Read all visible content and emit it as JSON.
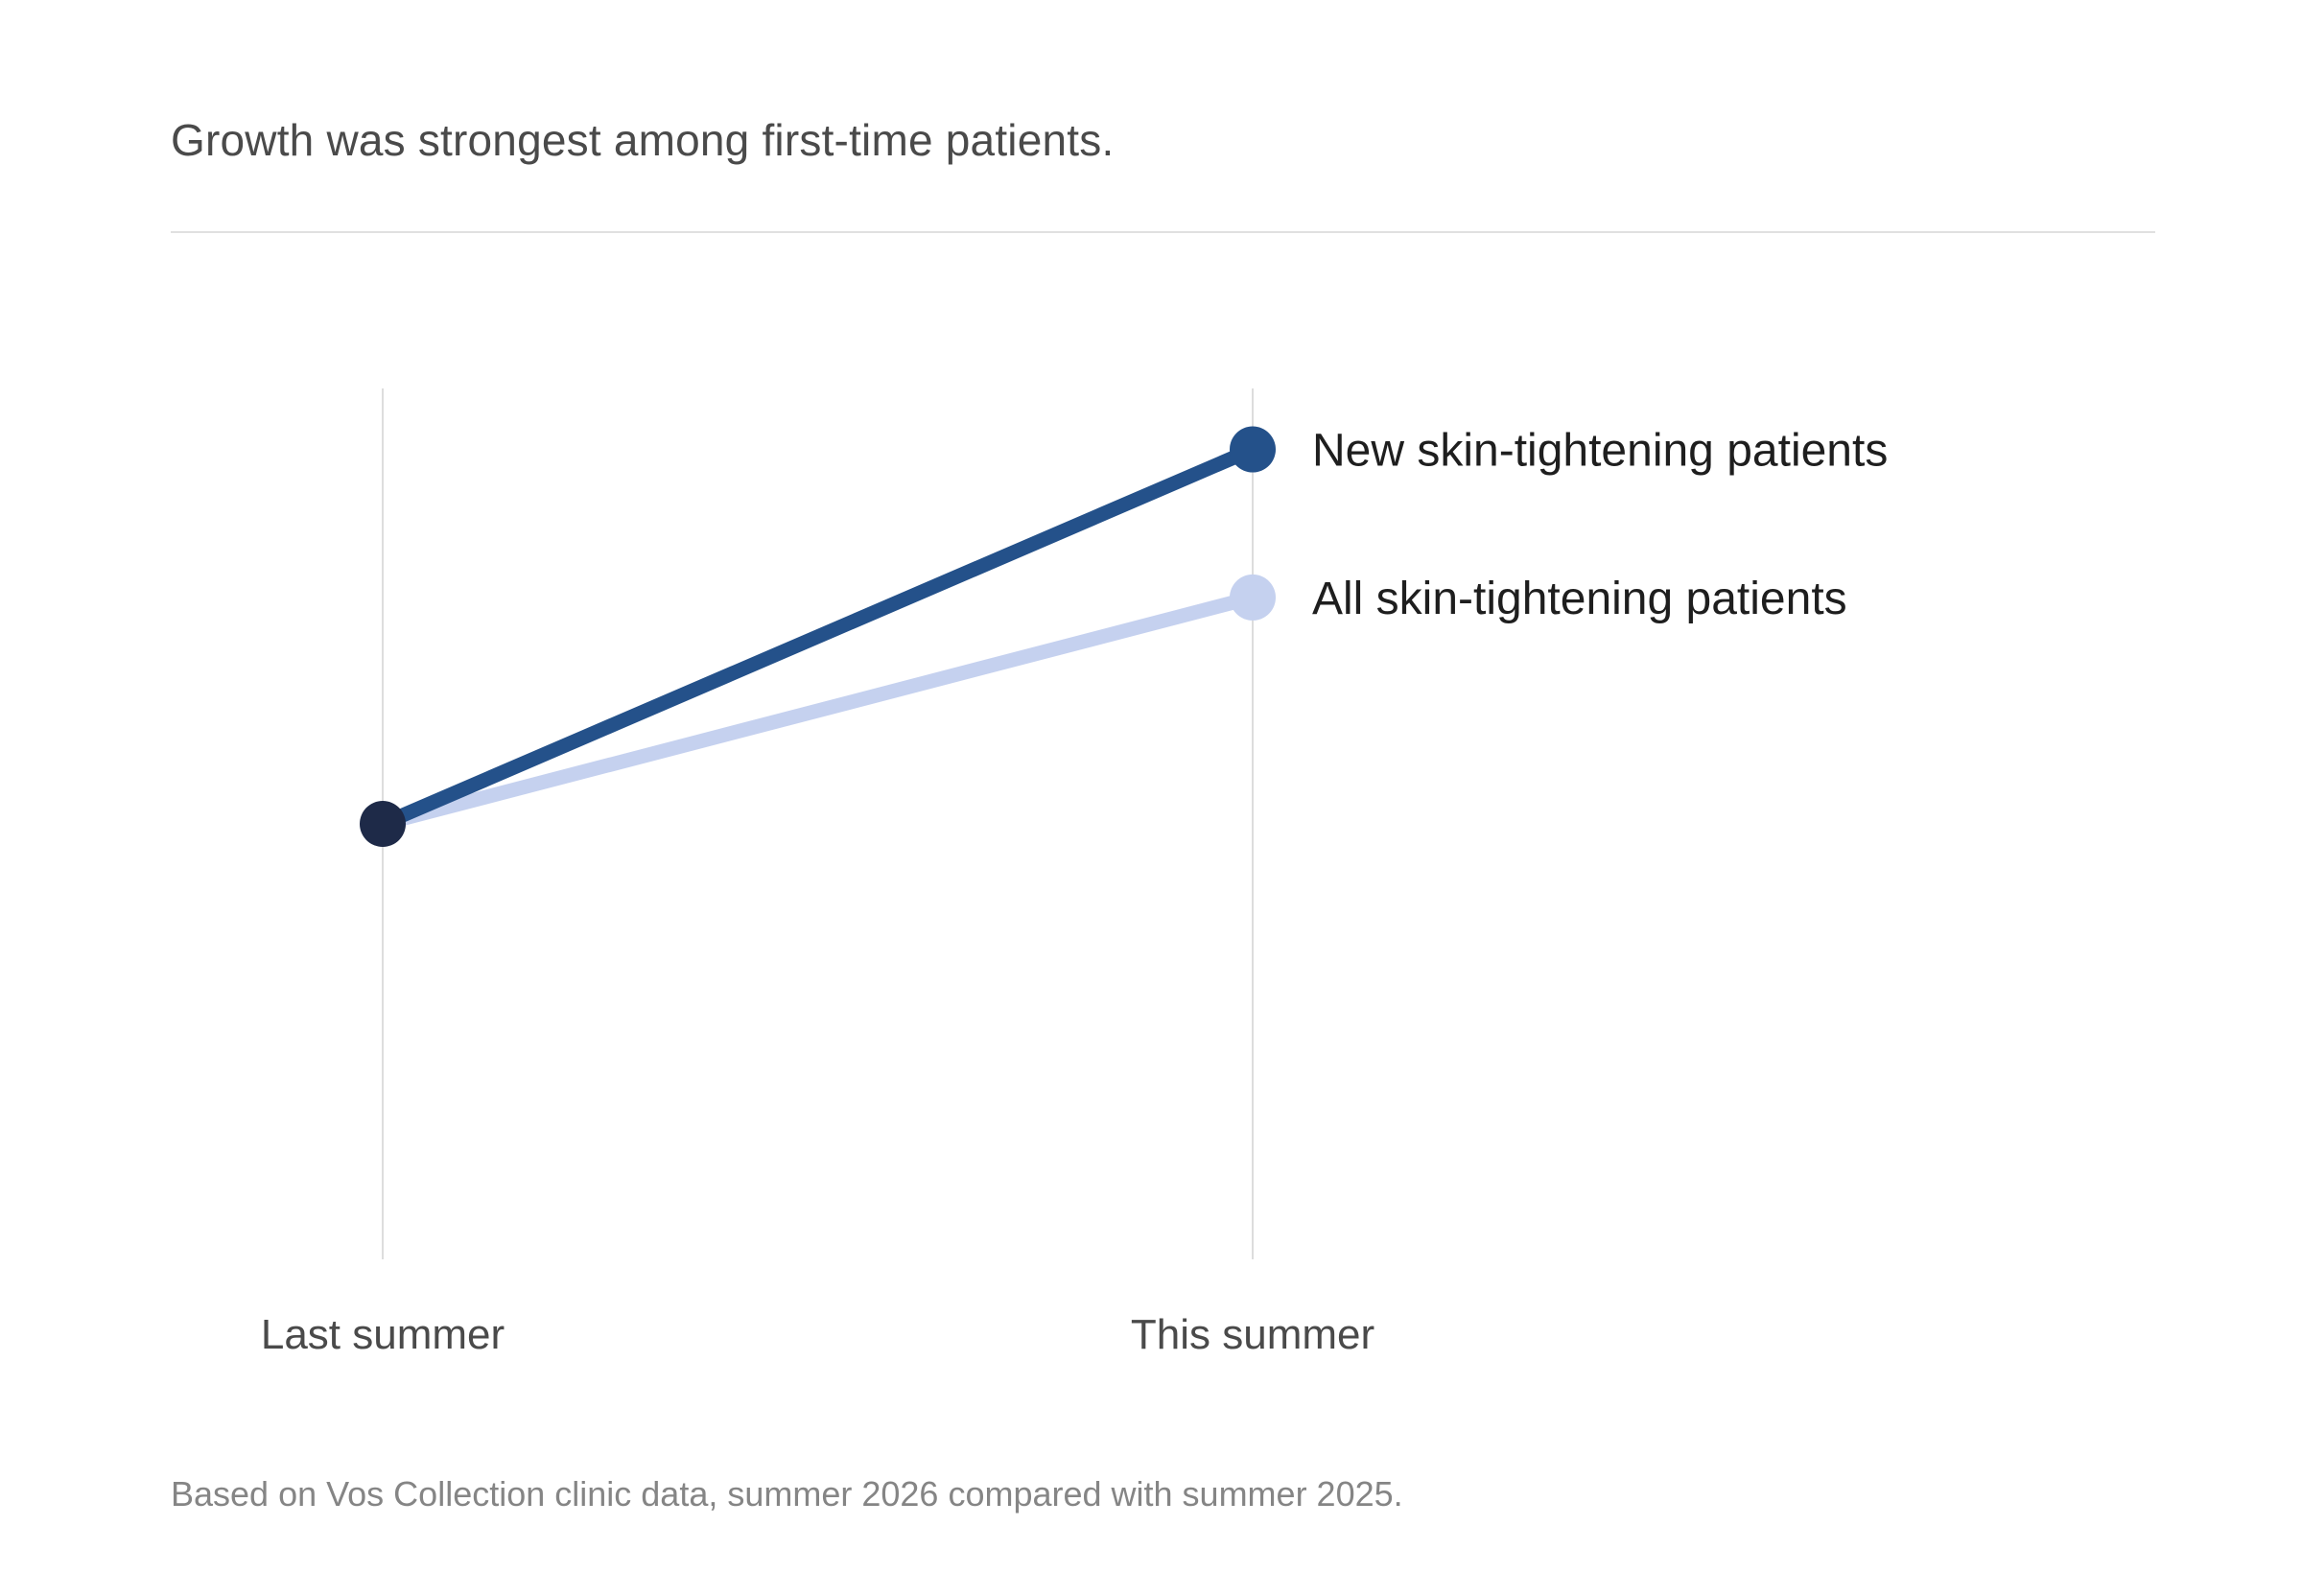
{
  "subtitle": "Growth was strongest among first-time patients.",
  "footnote": "Based on Vos Collection clinic data, summer 2026 compared with summer 2025.",
  "colors": {
    "new_series": "#24518a",
    "all_series": "#c5d1ef",
    "start_dot": "#1e2a48",
    "gridline": "#dddddd"
  },
  "chart_data": {
    "type": "line",
    "categories": [
      "Last summer",
      "This summer"
    ],
    "series": [
      {
        "name": "All skin-tightening patients",
        "values": [
          100,
          126
        ]
      },
      {
        "name": "New skin-tightening patients",
        "values": [
          100,
          143
        ]
      }
    ],
    "ylim": [
      50,
      150
    ],
    "grid": true,
    "legend": "direct labels at line ends"
  }
}
